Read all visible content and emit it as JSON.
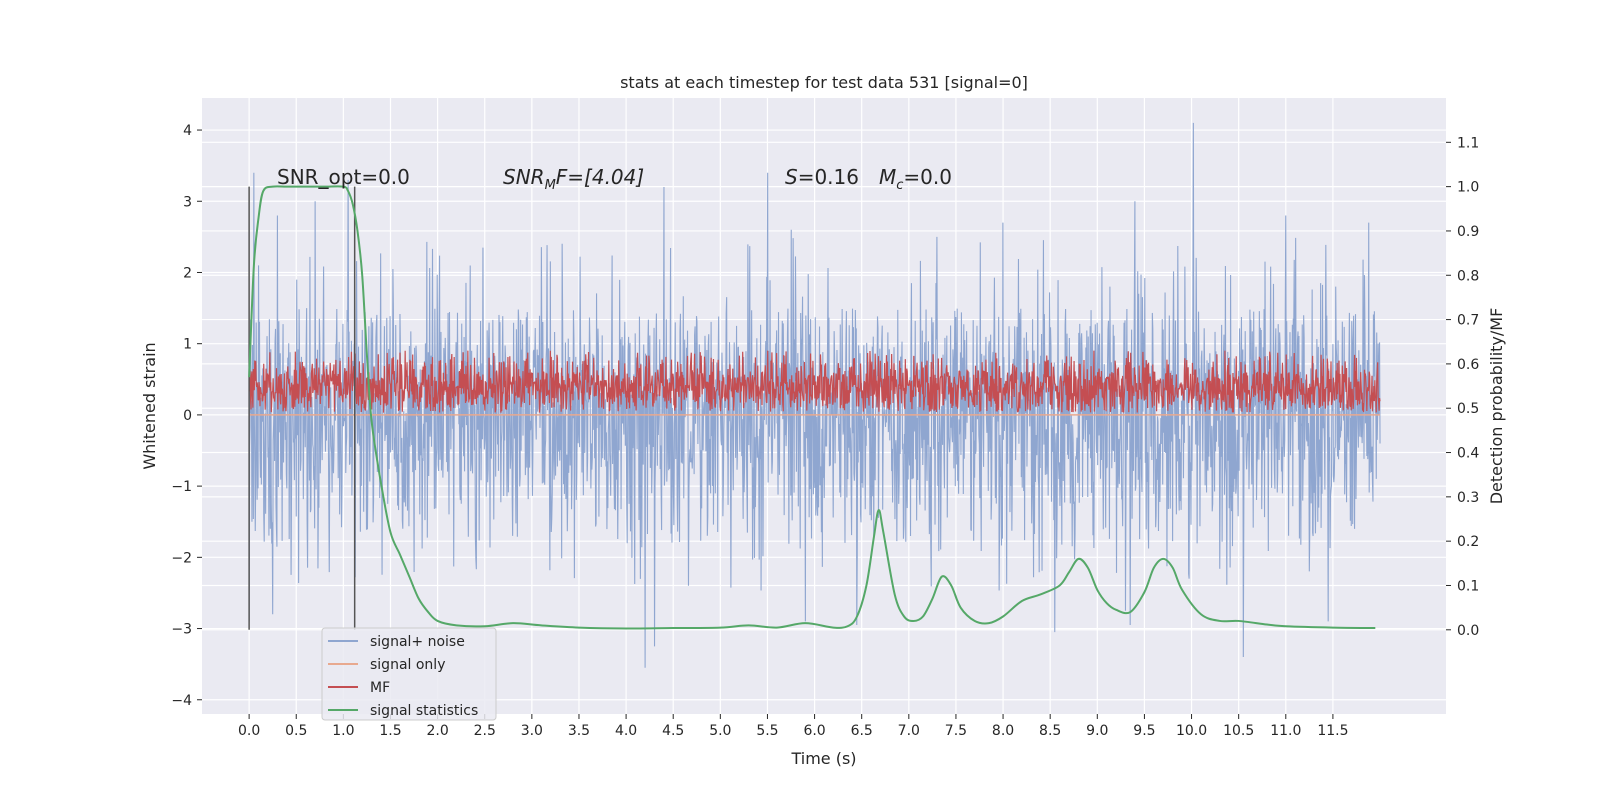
{
  "chart_data": {
    "type": "line",
    "title": "stats at each timestep for test data 531 [signal=0]",
    "xlabel": "Time (s)",
    "ylabel": "Whitened strain",
    "y2label": "Detection probability/MF",
    "xlim": [
      -0.5,
      12.7
    ],
    "ylim": [
      -4.2,
      4.45
    ],
    "y2lim": [
      -0.19,
      1.2
    ],
    "x_ticks": [
      "0.0",
      "0.5",
      "1.0",
      "1.5",
      "2.0",
      "2.5",
      "3.0",
      "3.5",
      "4.0",
      "4.5",
      "5.0",
      "5.5",
      "6.0",
      "6.5",
      "7.0",
      "7.5",
      "8.0",
      "8.5",
      "9.0",
      "9.5",
      "10.0",
      "10.5",
      "11.0",
      "11.5"
    ],
    "y_ticks": [
      "4",
      "3",
      "2",
      "1",
      "0",
      "−1",
      "−2",
      "−3",
      "−4"
    ],
    "y2_ticks": [
      "1.1",
      "1.0",
      "0.9",
      "0.8",
      "0.7",
      "0.6",
      "0.5",
      "0.4",
      "0.3",
      "0.2",
      "0.1",
      "0.0"
    ],
    "grid": true,
    "legend_position": "bottom-left",
    "annotations": {
      "snr_opt": "SNR_opt=0.0",
      "snr_mf_prefix": "SNR",
      "snr_mf_sub": "M",
      "snr_mf_suffix": "F=[4.04]",
      "s_prefix": "S",
      "s_value": "=0.16",
      "mc_prefix": "M",
      "mc_sub": "c",
      "mc_value": "=0.0"
    },
    "vlines_x": [
      0.0,
      1.12
    ],
    "series": [
      {
        "name": "signal+ noise",
        "color": "#8fa6d0",
        "axis": "left",
        "envelope": {
          "x_range": [
            0.0,
            12.0
          ],
          "typical_high": 1.5,
          "typical_low": -1.5,
          "peaks": [
            [
              0.05,
              3.4
            ],
            [
              0.1,
              2.1
            ],
            [
              0.3,
              2.8
            ],
            [
              0.7,
              3.0
            ],
            [
              1.05,
              3.3
            ],
            [
              2.4,
              2.8
            ],
            [
              4.4,
              3.2
            ],
            [
              5.5,
              3.4
            ],
            [
              5.75,
              2.6
            ],
            [
              6.45,
              3.2
            ],
            [
              7.3,
              2.5
            ],
            [
              8.0,
              2.7
            ],
            [
              9.4,
              3.0
            ],
            [
              10.02,
              4.1
            ],
            [
              11.0,
              2.8
            ],
            [
              11.88,
              2.7
            ]
          ],
          "troughs": [
            [
              0.0,
              -2.9
            ],
            [
              0.25,
              -2.8
            ],
            [
              0.85,
              -3.0
            ],
            [
              1.75,
              -3.7
            ],
            [
              2.4,
              -3.4
            ],
            [
              4.2,
              -3.55
            ],
            [
              4.3,
              -3.25
            ],
            [
              5.9,
              -2.9
            ],
            [
              6.45,
              -2.95
            ],
            [
              8.55,
              -3.05
            ],
            [
              9.3,
              -2.75
            ],
            [
              9.35,
              -2.95
            ],
            [
              10.55,
              -3.4
            ],
            [
              11.45,
              -2.9
            ]
          ]
        }
      },
      {
        "name": "signal only",
        "color": "#e8a98f",
        "axis": "left",
        "x": [
          0.0,
          12.0
        ],
        "values": [
          0.0,
          0.0
        ]
      },
      {
        "name": "MF",
        "color": "#c44e52",
        "axis": "right",
        "envelope": {
          "x_range": [
            0.0,
            12.0
          ],
          "typical_high": 0.6,
          "typical_low": 0.48,
          "peak_high": 0.63
        }
      },
      {
        "name": "signal statistics",
        "color": "#55a868",
        "axis": "right",
        "x": [
          0.0,
          0.05,
          0.1,
          0.15,
          0.25,
          0.4,
          0.6,
          0.8,
          1.0,
          1.05,
          1.1,
          1.15,
          1.2,
          1.25,
          1.3,
          1.4,
          1.5,
          1.6,
          1.7,
          1.8,
          1.9,
          2.0,
          2.2,
          2.5,
          2.8,
          3.1,
          3.5,
          4.0,
          4.5,
          5.0,
          5.3,
          5.6,
          5.9,
          6.2,
          6.35,
          6.45,
          6.55,
          6.63,
          6.68,
          6.73,
          6.85,
          6.95,
          7.05,
          7.15,
          7.25,
          7.35,
          7.45,
          7.55,
          7.7,
          7.85,
          8.0,
          8.2,
          8.4,
          8.6,
          8.7,
          8.8,
          8.9,
          9.0,
          9.1,
          9.2,
          9.35,
          9.5,
          9.6,
          9.7,
          9.8,
          9.9,
          10.1,
          10.3,
          10.5,
          10.8,
          11.0,
          11.5,
          11.95
        ],
        "values": [
          0.57,
          0.82,
          0.93,
          0.99,
          1.0,
          1.0,
          1.0,
          1.0,
          1.0,
          0.99,
          0.96,
          0.9,
          0.8,
          0.62,
          0.47,
          0.33,
          0.22,
          0.17,
          0.12,
          0.07,
          0.04,
          0.02,
          0.01,
          0.008,
          0.015,
          0.01,
          0.005,
          0.003,
          0.004,
          0.005,
          0.01,
          0.005,
          0.015,
          0.005,
          0.008,
          0.03,
          0.1,
          0.21,
          0.27,
          0.22,
          0.08,
          0.03,
          0.02,
          0.03,
          0.07,
          0.12,
          0.1,
          0.05,
          0.02,
          0.015,
          0.03,
          0.065,
          0.08,
          0.1,
          0.13,
          0.16,
          0.14,
          0.09,
          0.06,
          0.045,
          0.04,
          0.085,
          0.14,
          0.16,
          0.14,
          0.09,
          0.035,
          0.02,
          0.02,
          0.012,
          0.008,
          0.005,
          0.004
        ]
      }
    ]
  }
}
